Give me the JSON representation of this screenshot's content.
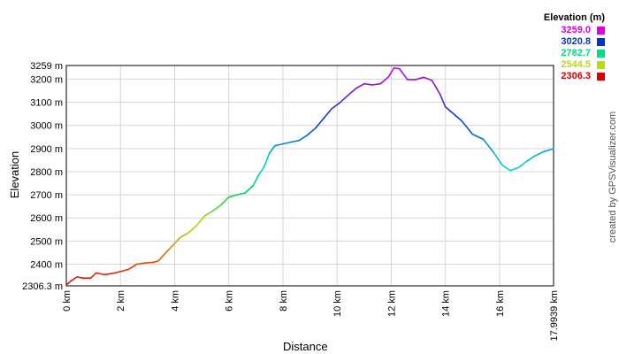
{
  "chart_data": {
    "type": "line",
    "title": "",
    "xlabel": "Distance",
    "ylabel": "Elevation",
    "xlim": [
      0,
      17.9939
    ],
    "ylim": [
      2306.3,
      3259
    ],
    "x_ticks": [
      "0 km",
      "2 km",
      "4 km",
      "6 km",
      "8 km",
      "10 km",
      "12 km",
      "14 km",
      "16 km",
      "17.9939 km"
    ],
    "x_tick_values": [
      0,
      2,
      4,
      6,
      8,
      10,
      12,
      14,
      16,
      17.9939
    ],
    "y_ticks": [
      "2306.3 m",
      "2400 m",
      "2500 m",
      "2600 m",
      "2700 m",
      "2800 m",
      "2900 m",
      "3000 m",
      "3100 m",
      "3200 m",
      "3259 m"
    ],
    "y_tick_values": [
      2306.3,
      2400,
      2500,
      2600,
      2700,
      2800,
      2900,
      3000,
      3100,
      3200,
      3259
    ],
    "grid": true,
    "legend": {
      "title": "Elevation (m)",
      "placement": "top-right",
      "items": [
        {
          "label": "3259.0",
          "color": "#dd00dd"
        },
        {
          "label": "3020.8",
          "color": "#0033cc"
        },
        {
          "label": "2782.7",
          "color": "#00dd88"
        },
        {
          "label": "2544.5",
          "color": "#bbdd00"
        },
        {
          "label": "2306.3",
          "color": "#dd0000"
        }
      ]
    },
    "series": [
      {
        "x": [
          0,
          0.2,
          0.4,
          0.6,
          0.9,
          1.1,
          1.4,
          1.7,
          2.0,
          2.3,
          2.6,
          2.9,
          3.2,
          3.4,
          3.6,
          3.8,
          4.0,
          4.2,
          4.5,
          4.8,
          5.1,
          5.4,
          5.7,
          6.0,
          6.3,
          6.6,
          6.9,
          7.1,
          7.3,
          7.5,
          7.7,
          8.0,
          8.3,
          8.6,
          8.9,
          9.2,
          9.5,
          9.8,
          10.1,
          10.4,
          10.7,
          11.0,
          11.3,
          11.6,
          11.9,
          12.1,
          12.3,
          12.6,
          12.9,
          13.2,
          13.5,
          13.8,
          14.0,
          14.2,
          14.6,
          15.0,
          15.4,
          15.8,
          16.1,
          16.4,
          16.7,
          17.0,
          17.3,
          17.6,
          17.9939
        ],
        "y": [
          2310,
          2330,
          2345,
          2340,
          2340,
          2362,
          2355,
          2360,
          2368,
          2378,
          2400,
          2405,
          2408,
          2414,
          2440,
          2465,
          2490,
          2515,
          2535,
          2565,
          2608,
          2630,
          2655,
          2690,
          2700,
          2708,
          2740,
          2785,
          2820,
          2880,
          2912,
          2920,
          2928,
          2935,
          2958,
          2988,
          3030,
          3072,
          3098,
          3130,
          3160,
          3180,
          3175,
          3180,
          3210,
          3248,
          3245,
          3198,
          3198,
          3208,
          3195,
          3135,
          3080,
          3060,
          3020,
          2962,
          2940,
          2880,
          2828,
          2805,
          2818,
          2845,
          2868,
          2885,
          2900
        ]
      }
    ]
  },
  "credit_text": "created by GPSVisualizer.com"
}
